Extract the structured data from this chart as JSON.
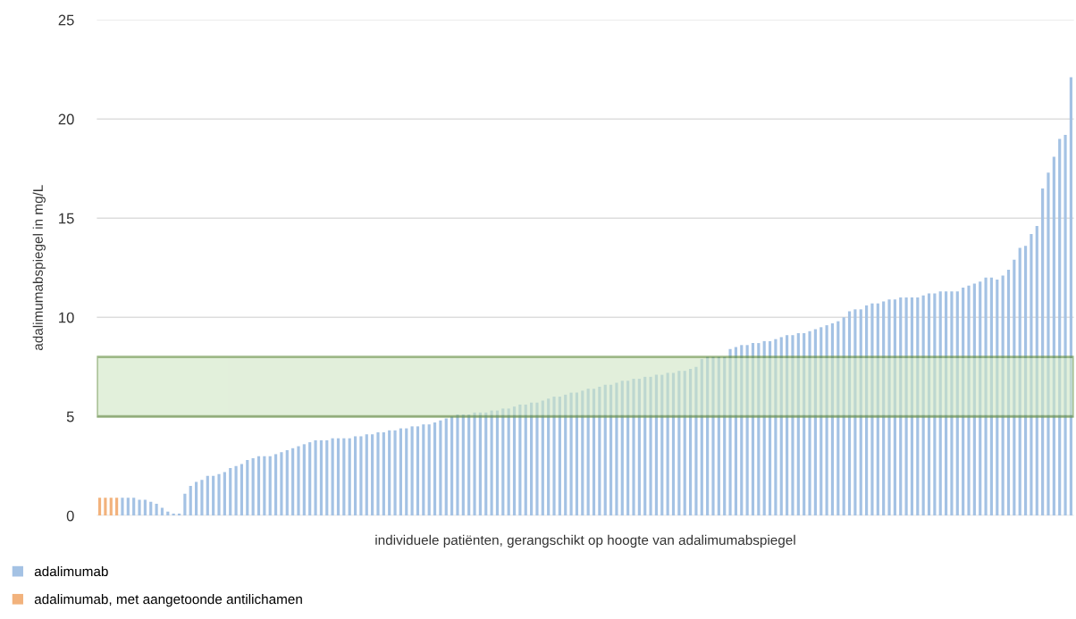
{
  "chart_data": {
    "type": "bar",
    "xlabel": "individuele patiënten, gerangschikt op hoogte van adalimumabspiegel",
    "ylabel": "adalimumabspiegel in mg/L",
    "categories": [
      null,
      null,
      null,
      null,
      null,
      null,
      null,
      null,
      null,
      null,
      null,
      null,
      null,
      null,
      null,
      null,
      null,
      null,
      null,
      null,
      null,
      null,
      null,
      null,
      null,
      null,
      null,
      null,
      null,
      null,
      null,
      null,
      null,
      null,
      null,
      null,
      null,
      null,
      null,
      null,
      null,
      null,
      null,
      null,
      null,
      null,
      null,
      null,
      null,
      null,
      null,
      null,
      null,
      null,
      null,
      null,
      null,
      null,
      null,
      null,
      null,
      null,
      null,
      null,
      null,
      null,
      null,
      null,
      null,
      null,
      null,
      null,
      null,
      null,
      null,
      null,
      null,
      null,
      null,
      null,
      null,
      null,
      null,
      null,
      null,
      null,
      null,
      null,
      null,
      null,
      null,
      null,
      null,
      null,
      null,
      null,
      null,
      null,
      null,
      null,
      null,
      null,
      null,
      null,
      null,
      null,
      null,
      null,
      null,
      null,
      null,
      null,
      null,
      null,
      null,
      null,
      null,
      null,
      null,
      null,
      null,
      null,
      null,
      null,
      null,
      null,
      null,
      null,
      null,
      null,
      null,
      null,
      null,
      null,
      null,
      null,
      null,
      null,
      null,
      null,
      null,
      null,
      null,
      null,
      null,
      null,
      null,
      null,
      null,
      null,
      null,
      null,
      null,
      null,
      null,
      null,
      null,
      null,
      null,
      null,
      null,
      null,
      null,
      null,
      null,
      null,
      null,
      null,
      null,
      null,
      null,
      null
    ],
    "series": [
      {
        "name": "adalimumab",
        "color": "#a4c2e4",
        "values": [
          null,
          null,
          null,
          null,
          0.9,
          0.9,
          0.9,
          0.8,
          0.8,
          0.7,
          0.6,
          0.4,
          0.2,
          0.1,
          0.1,
          1.1,
          1.5,
          1.7,
          1.8,
          2.0,
          2.0,
          2.1,
          2.2,
          2.4,
          2.5,
          2.6,
          2.8,
          2.9,
          3.0,
          3.0,
          3.0,
          3.1,
          3.2,
          3.3,
          3.4,
          3.5,
          3.6,
          3.7,
          3.8,
          3.8,
          3.8,
          3.9,
          3.9,
          3.9,
          3.9,
          4.0,
          4.0,
          4.1,
          4.1,
          4.2,
          4.2,
          4.3,
          4.3,
          4.4,
          4.4,
          4.5,
          4.5,
          4.6,
          4.6,
          4.7,
          4.8,
          4.9,
          5.0,
          5.1,
          5.1,
          5.1,
          5.2,
          5.2,
          5.2,
          5.3,
          5.3,
          5.4,
          5.4,
          5.5,
          5.6,
          5.6,
          5.7,
          5.7,
          5.8,
          5.9,
          6.0,
          6.0,
          6.1,
          6.2,
          6.2,
          6.3,
          6.4,
          6.4,
          6.5,
          6.6,
          6.6,
          6.7,
          6.8,
          6.8,
          6.9,
          6.9,
          7.0,
          7.0,
          7.1,
          7.1,
          7.2,
          7.2,
          7.3,
          7.3,
          7.4,
          7.5,
          7.9,
          8.0,
          8.0,
          8.0,
          8.0,
          8.4,
          8.5,
          8.6,
          8.6,
          8.7,
          8.7,
          8.8,
          8.8,
          8.9,
          9.0,
          9.1,
          9.1,
          9.2,
          9.2,
          9.3,
          9.4,
          9.5,
          9.6,
          9.7,
          9.8,
          10.0,
          10.3,
          10.4,
          10.4,
          10.6,
          10.7,
          10.7,
          10.8,
          10.9,
          10.9,
          11.0,
          11.0,
          11.0,
          11.0,
          11.1,
          11.2,
          11.2,
          11.3,
          11.3,
          11.3,
          11.3,
          11.5,
          11.6,
          11.7,
          11.8,
          12.0,
          12.0,
          11.9,
          12.1,
          12.4,
          12.9,
          13.5,
          13.6,
          14.2,
          14.6,
          16.5,
          17.3,
          18.1,
          19.0,
          19.2,
          22.1
        ]
      },
      {
        "name": "adalimumab, met aangetoonde antilichamen",
        "color": "#f2b27c",
        "values": [
          0.9,
          0.9,
          0.9,
          0.9,
          null,
          null,
          null,
          null,
          null,
          null,
          null,
          null,
          null,
          null,
          null,
          null,
          null,
          null,
          null,
          null,
          null,
          null,
          null,
          null,
          null,
          null,
          null,
          null,
          null,
          null,
          null,
          null,
          null,
          null,
          null,
          null,
          null,
          null,
          null,
          null,
          null,
          null,
          null,
          null,
          null,
          null,
          null,
          null,
          null,
          null,
          null,
          null,
          null,
          null,
          null,
          null,
          null,
          null,
          null,
          null,
          null,
          null,
          null,
          null,
          null,
          null,
          null,
          null,
          null,
          null,
          null,
          null,
          null,
          null,
          null,
          null,
          null,
          null,
          null,
          null,
          null,
          null,
          null,
          null,
          null,
          null,
          null,
          null,
          null,
          null,
          null,
          null,
          null,
          null,
          null,
          null,
          null,
          null,
          null,
          null,
          null,
          null,
          null,
          null,
          null,
          null,
          null,
          null,
          null,
          null,
          null,
          null,
          null,
          null,
          null,
          null,
          null,
          null,
          null,
          null,
          null,
          null,
          null,
          null,
          null,
          null,
          null,
          null,
          null,
          null,
          null,
          null,
          null,
          null,
          null,
          null,
          null,
          null,
          null,
          null,
          null,
          null,
          null,
          null,
          null,
          null,
          null,
          null,
          null,
          null,
          null,
          null,
          null,
          null,
          null,
          null,
          null,
          null,
          null,
          null,
          null,
          null,
          null,
          null,
          null,
          null,
          null,
          null,
          null,
          null,
          null,
          null
        ]
      }
    ],
    "ylim": [
      0,
      25
    ],
    "yticks": [
      0,
      5,
      10,
      15,
      20,
      25
    ],
    "bands": [
      {
        "axis": "y",
        "from": 5,
        "to": 8,
        "color": "#cfe6c4"
      }
    ],
    "grid": "y",
    "legend": "bottom left"
  }
}
